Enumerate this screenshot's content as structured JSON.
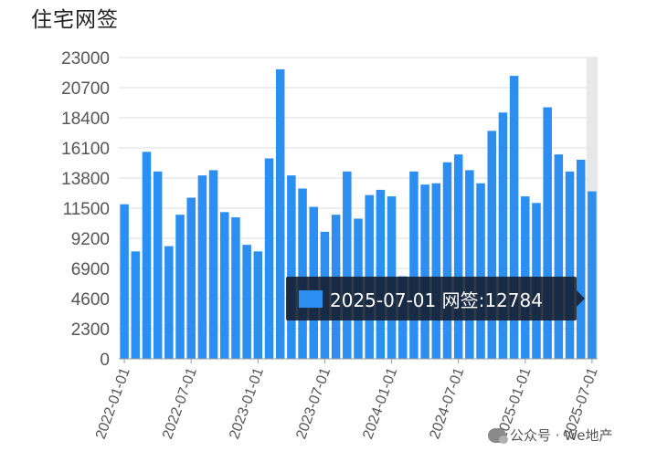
{
  "title": "住宅网签",
  "chart_data": {
    "type": "bar",
    "title": "住宅网签",
    "series_name": "网签",
    "color": "#2b8ef0",
    "ylim": [
      0,
      23000
    ],
    "yticks": [
      0,
      2300,
      4600,
      6900,
      9200,
      11500,
      13800,
      16100,
      18400,
      20700,
      23000
    ],
    "xtick_labels": [
      "2022-01-01",
      "2022-07-01",
      "2023-01-01",
      "2023-07-01",
      "2024-01-01",
      "2024-07-01",
      "2025-01-01",
      "2025-07-01"
    ],
    "xtick_indices": [
      0,
      6,
      12,
      18,
      24,
      30,
      36,
      42
    ],
    "categories": [
      "2022-01",
      "2022-02",
      "2022-03",
      "2022-04",
      "2022-05",
      "2022-06",
      "2022-07",
      "2022-08",
      "2022-09",
      "2022-10",
      "2022-11",
      "2022-12",
      "2023-01",
      "2023-02",
      "2023-03",
      "2023-04",
      "2023-05",
      "2023-06",
      "2023-07",
      "2023-08",
      "2023-09",
      "2023-10",
      "2023-11",
      "2023-12",
      "2024-01",
      "2024-02",
      "2024-03",
      "2024-04",
      "2024-05",
      "2024-06",
      "2024-07",
      "2024-08",
      "2024-09",
      "2024-10",
      "2024-11",
      "2024-12",
      "2025-01",
      "2025-02",
      "2025-03",
      "2025-04",
      "2025-05",
      "2025-06",
      "2025-07"
    ],
    "values": [
      11800,
      8200,
      15800,
      14300,
      8600,
      11000,
      12300,
      14000,
      14400,
      11200,
      10800,
      8700,
      8200,
      15300,
      22100,
      14000,
      13000,
      11600,
      9700,
      11000,
      14300,
      10700,
      12500,
      12900,
      12400,
      6300,
      14300,
      13300,
      13400,
      15000,
      15600,
      14400,
      13400,
      17400,
      18800,
      21600,
      12400,
      11900,
      19200,
      15600,
      14300,
      15200,
      12784
    ],
    "highlight_index": 42,
    "grid": true
  },
  "tooltip": {
    "text": "2025-07-01 网签:12784",
    "swatch_color": "#2b8ef0"
  },
  "watermark": {
    "text": "公众号 · We地产",
    "icon": "wechat-icon"
  }
}
